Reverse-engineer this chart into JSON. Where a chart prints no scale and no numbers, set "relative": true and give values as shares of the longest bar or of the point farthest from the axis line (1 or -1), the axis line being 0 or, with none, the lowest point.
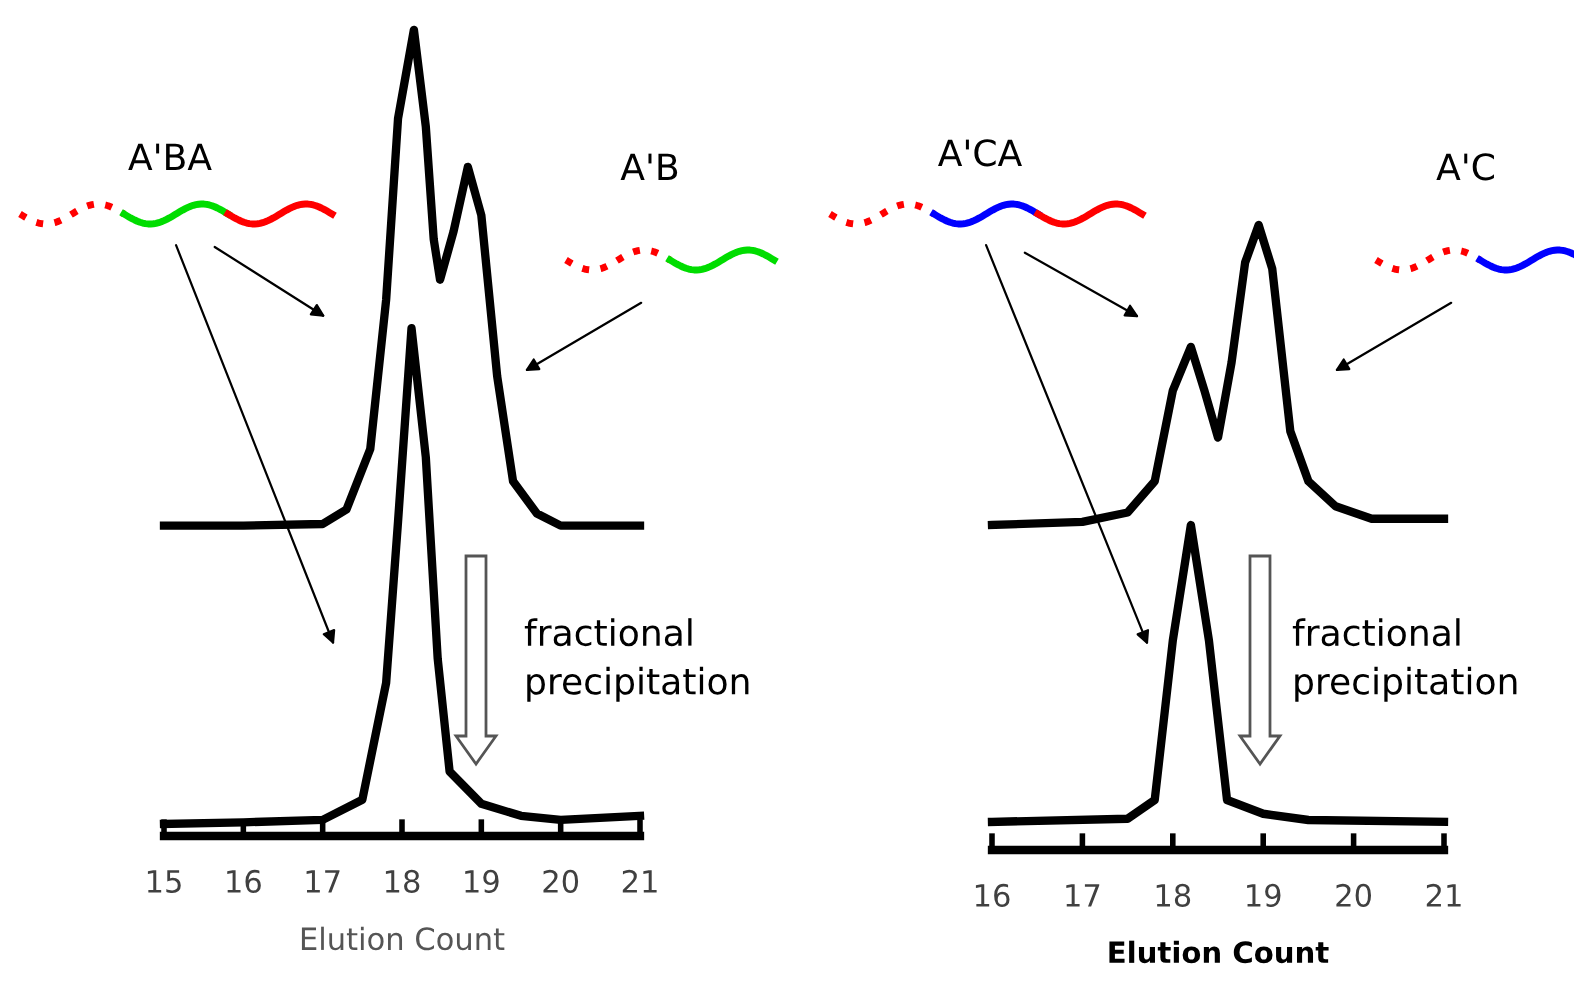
{
  "chart_data": [
    {
      "type": "line",
      "relative": true,
      "xlabel": "Elution Count",
      "xlim": [
        15,
        21
      ],
      "xticks": [
        15,
        16,
        17,
        18,
        19,
        20,
        21
      ],
      "grid": false,
      "legend": false,
      "marker": "none",
      "line_style": "solid",
      "tick_labels": "x",
      "annotations": [
        "A'BA",
        "A'B",
        "fractional\nprecipitation"
      ],
      "series": [
        {
          "color": "#000000",
          "x": [
            15,
            16,
            17,
            17.3,
            17.6,
            17.8,
            17.95,
            18.15,
            18.3,
            18.4,
            18.48,
            18.65,
            18.83,
            19.0,
            19.2,
            19.4,
            19.7,
            20,
            21
          ],
          "values": [
            0.385,
            0.385,
            0.387,
            0.405,
            0.48,
            0.665,
            0.89,
            1.0,
            0.88,
            0.74,
            0.69,
            0.75,
            0.83,
            0.77,
            0.57,
            0.44,
            0.4,
            0.385,
            0.385
          ]
        },
        {
          "color": "#000000",
          "x": [
            15,
            16,
            17,
            17.5,
            17.8,
            17.95,
            18.12,
            18.3,
            18.45,
            18.6,
            19,
            19.5,
            20,
            21
          ],
          "values": [
            0.015,
            0.017,
            0.02,
            0.045,
            0.19,
            0.39,
            0.63,
            0.47,
            0.22,
            0.08,
            0.04,
            0.025,
            0.02,
            0.025
          ]
        }
      ]
    },
    {
      "type": "line",
      "relative": true,
      "xlabel": "Elution Count",
      "xlim": [
        16,
        21
      ],
      "xticks": [
        16,
        17,
        18,
        19,
        20,
        21
      ],
      "grid": false,
      "legend": false,
      "marker": "none",
      "line_style": "solid",
      "tick_labels": "x",
      "annotations": [
        "A'CA",
        "A'C",
        "fractional\nprecipitation"
      ],
      "series": [
        {
          "color": "#000000",
          "x": [
            16,
            17,
            17.5,
            17.8,
            18.0,
            18.2,
            18.35,
            18.5,
            18.65,
            18.8,
            18.95,
            19.1,
            19.3,
            19.5,
            19.8,
            20.2,
            21
          ],
          "values": [
            0.52,
            0.525,
            0.54,
            0.59,
            0.735,
            0.805,
            0.735,
            0.66,
            0.78,
            0.94,
            1.0,
            0.93,
            0.67,
            0.59,
            0.55,
            0.53,
            0.53
          ]
        },
        {
          "color": "#000000",
          "x": [
            16,
            17.5,
            17.8,
            18.0,
            18.2,
            18.4,
            18.6,
            19,
            19.5,
            21
          ],
          "values": [
            0.045,
            0.05,
            0.08,
            0.335,
            0.52,
            0.335,
            0.08,
            0.058,
            0.048,
            0.045
          ]
        }
      ]
    }
  ]
}
